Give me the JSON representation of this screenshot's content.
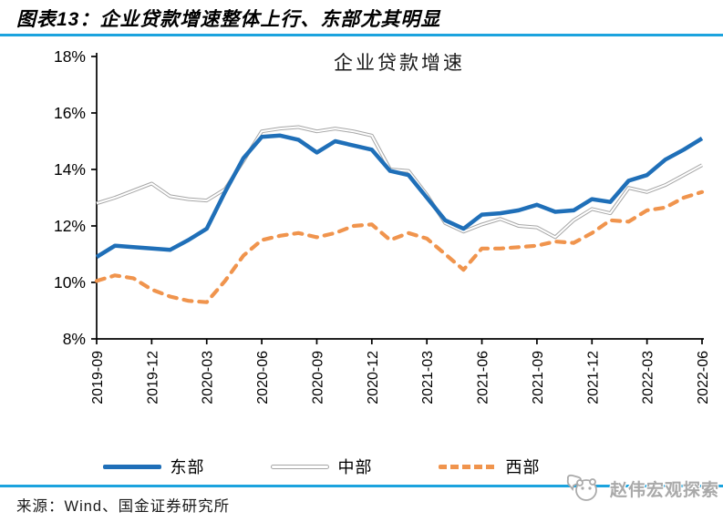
{
  "header": {
    "title": "图表13：企业贷款增速整体上行、东部尤其明显"
  },
  "source": {
    "label": "来源：Wind、国金证券研究所"
  },
  "watermark": {
    "text": "赵伟宏观探索",
    "icon": "panda-chat-logo"
  },
  "theme": {
    "background": "#FFFFFF",
    "rule_color": "#1BA3DE",
    "axis_color": "#000000",
    "watermark_color": "#A9A9A9"
  },
  "chart_data": {
    "type": "line",
    "title": "企业贷款增速",
    "xlabel": "",
    "ylabel": "",
    "ylim": [
      8,
      18
    ],
    "yticks": [
      8,
      10,
      12,
      14,
      16,
      18
    ],
    "ytick_format": "percent",
    "grid": false,
    "legend_position": "bottom",
    "xtick_every": 3,
    "x_tick_labels": [
      "2019-09",
      "2019-12",
      "2020-03",
      "2020-06",
      "2020-09",
      "2020-12",
      "2021-03",
      "2021-06",
      "2021-09",
      "2021-12",
      "2022-03",
      "2022-06"
    ],
    "x": [
      "2019-09",
      "2019-10",
      "2019-11",
      "2019-12",
      "2020-01",
      "2020-02",
      "2020-03",
      "2020-04",
      "2020-05",
      "2020-06",
      "2020-07",
      "2020-08",
      "2020-09",
      "2020-10",
      "2020-11",
      "2020-12",
      "2021-01",
      "2021-02",
      "2021-03",
      "2021-04",
      "2021-05",
      "2021-06",
      "2021-07",
      "2021-08",
      "2021-09",
      "2021-10",
      "2021-11",
      "2021-12",
      "2022-01",
      "2022-02",
      "2022-03",
      "2022-04",
      "2022-05",
      "2022-06"
    ],
    "series": [
      {
        "id": "east",
        "name": "东部",
        "color": "#1F6FB8",
        "style": "solid",
        "z": 3,
        "values": [
          10.9,
          11.3,
          11.25,
          11.2,
          11.15,
          11.5,
          11.9,
          13.2,
          14.4,
          15.15,
          15.2,
          15.05,
          14.6,
          15.0,
          14.85,
          14.7,
          13.95,
          13.8,
          13.0,
          12.2,
          11.9,
          12.4,
          12.45,
          12.55,
          12.75,
          12.5,
          12.55,
          12.95,
          12.85,
          13.6,
          13.8,
          14.35,
          14.7,
          15.1
        ]
      },
      {
        "id": "central",
        "name": "中部",
        "color": "#A6A6A6",
        "style": "double",
        "z": 1,
        "values": [
          12.8,
          13.0,
          13.25,
          13.5,
          13.05,
          12.95,
          12.9,
          13.3,
          14.3,
          15.35,
          15.45,
          15.5,
          15.35,
          15.45,
          15.35,
          15.2,
          14.0,
          13.95,
          13.1,
          12.1,
          11.8,
          12.05,
          12.25,
          12.0,
          11.95,
          11.6,
          12.2,
          12.6,
          12.45,
          13.35,
          13.2,
          13.45,
          13.8,
          14.15
        ]
      },
      {
        "id": "west",
        "name": "西部",
        "color": "#F0944D",
        "style": "dashed",
        "z": 2,
        "values": [
          10.05,
          10.25,
          10.15,
          9.75,
          9.5,
          9.35,
          9.3,
          10.05,
          10.95,
          11.5,
          11.65,
          11.75,
          11.6,
          11.75,
          12.0,
          12.05,
          11.5,
          11.75,
          11.55,
          11.0,
          10.45,
          11.2,
          11.2,
          11.25,
          11.3,
          11.45,
          11.4,
          11.75,
          12.2,
          12.15,
          12.55,
          12.65,
          13.0,
          13.2
        ]
      }
    ]
  }
}
